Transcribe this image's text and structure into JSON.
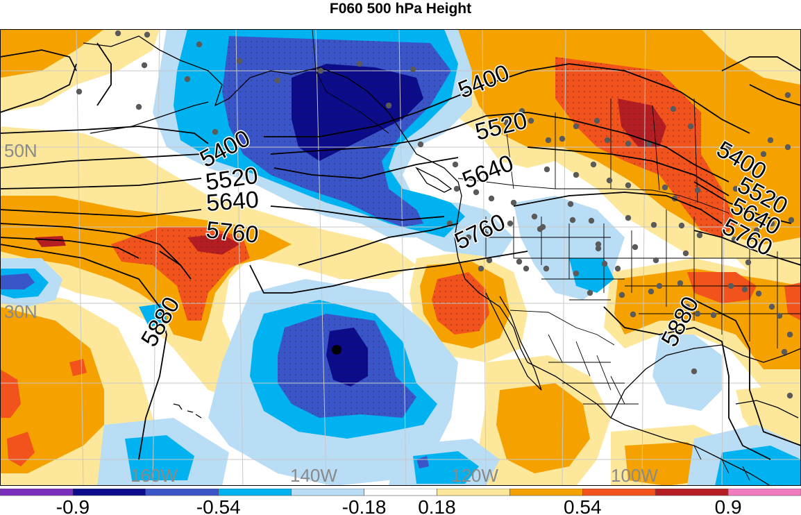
{
  "title": "F060 500 hPa Height",
  "colors": {
    "c_m9": "#7b2fbf",
    "c_m72": "#0c0c8a",
    "c_m54": "#3a55c8",
    "c_m36": "#00b3f0",
    "c_m18": "#b8ddf5",
    "c_0": "#ffffff",
    "c_p18": "#fde79a",
    "c_p36": "#f5a200",
    "c_p54": "#f2521c",
    "c_p72": "#b41e22",
    "c_p9": "#f07cbf",
    "contour": "#000000",
    "coast": "#000000",
    "grid": "#c8c8c8",
    "station": "#5a5a5a"
  },
  "grid_labels": {
    "lat_50": "50N",
    "lat_30": "30N",
    "lon_160": "160W",
    "lon_140": "140W",
    "lon_120": "120W",
    "lon_100": "100W"
  },
  "contour_labels": {
    "a": "5400",
    "b": "5520",
    "c": "5640",
    "d": "5760",
    "e": "5400",
    "f": "5520",
    "g": "5640",
    "h": "5760",
    "i": "5880",
    "j": "5400",
    "k": "5520",
    "l": "5640",
    "m": "5760",
    "n": "5880"
  },
  "colorbar": {
    "tick_labels": [
      "-0.9",
      "-0.54",
      "-0.18",
      "0.18",
      "0.54",
      "0.9"
    ],
    "colors": [
      "#7b2fbf",
      "#0c0c8a",
      "#3a55c8",
      "#00b3f0",
      "#b8ddf5",
      "#ffffff",
      "#fde79a",
      "#f5a200",
      "#f2521c",
      "#b41e22",
      "#f07cbf"
    ]
  }
}
